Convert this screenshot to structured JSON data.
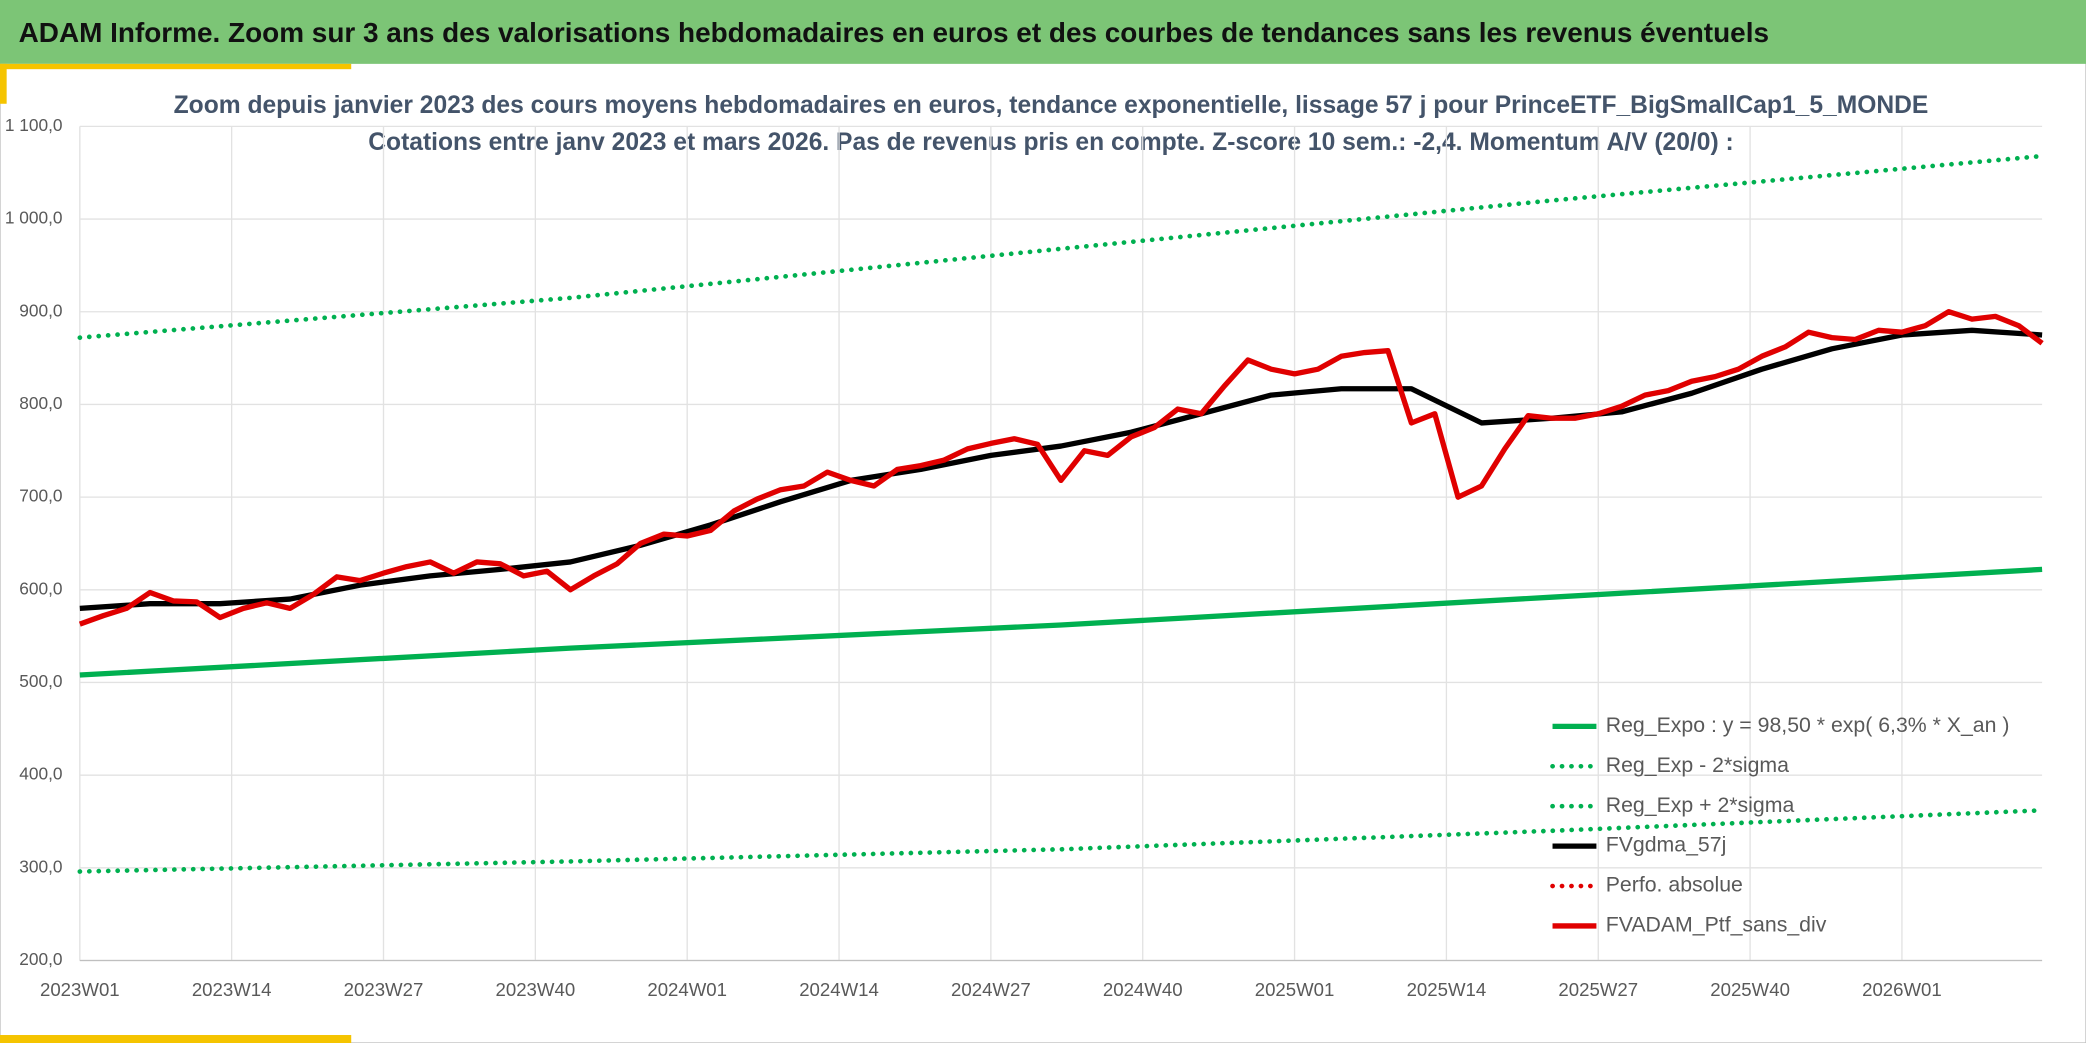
{
  "header": {
    "title": "ADAM Informe. Zoom sur 3 ans des valorisations hebdomadaires en euros et des courbes de tendances sans les revenus éventuels"
  },
  "chart_data": {
    "type": "line",
    "title": "Zoom depuis janvier 2023 des cours moyens hebdomadaires en euros, tendance exponentielle, lissage 57 j pour PrinceETF_BigSmallCap1_5_MONDE",
    "subtitle": "Cotations entre janv 2023 et mars 2026. Pas de revenus pris en compte. Z-score 10 sem.: -2,4. Momentum A/V (20/0) :",
    "xlim": [
      0,
      168
    ],
    "xticks": [
      {
        "value": 0,
        "label": "2023W01"
      },
      {
        "value": 13,
        "label": "2023W14"
      },
      {
        "value": 26,
        "label": "2023W27"
      },
      {
        "value": 39,
        "label": "2023W40"
      },
      {
        "value": 52,
        "label": "2024W01"
      },
      {
        "value": 65,
        "label": "2024W14"
      },
      {
        "value": 78,
        "label": "2024W27"
      },
      {
        "value": 91,
        "label": "2024W40"
      },
      {
        "value": 104,
        "label": "2025W01"
      },
      {
        "value": 117,
        "label": "2025W14"
      },
      {
        "value": 130,
        "label": "2025W27"
      },
      {
        "value": 143,
        "label": "2025W40"
      },
      {
        "value": 156,
        "label": "2026W01"
      }
    ],
    "ylim": [
      200,
      1100
    ],
    "yticks": [
      {
        "value": 200,
        "label": "200,0"
      },
      {
        "value": 300,
        "label": "300,0"
      },
      {
        "value": 400,
        "label": "400,0"
      },
      {
        "value": 500,
        "label": "500,0"
      },
      {
        "value": 600,
        "label": "600,0"
      },
      {
        "value": 700,
        "label": "700,0"
      },
      {
        "value": 800,
        "label": "800,0"
      },
      {
        "value": 900,
        "label": "900,0"
      },
      {
        "value": 1000,
        "label": "1 000,0"
      },
      {
        "value": 1100,
        "label": "1 100,0"
      }
    ],
    "grid": true,
    "legend": "bottom-right",
    "series": [
      {
        "name": "Reg_Expo : y = 98,50 * exp( 6,3% *  X_an )",
        "color": "#00b050",
        "style": "solid",
        "x": [
          0,
          42,
          84,
          126,
          168
        ],
        "values": [
          508,
          537,
          562,
          592,
          622
        ]
      },
      {
        "name": "Reg_Exp - 2*sigma",
        "color": "#00b050",
        "style": "dot",
        "x": [
          0,
          42,
          84,
          126,
          168
        ],
        "values": [
          296,
          307,
          320,
          340,
          362
        ]
      },
      {
        "name": "Reg_Exp + 2*sigma",
        "color": "#00b050",
        "style": "dot",
        "x": [
          0,
          42,
          84,
          126,
          168
        ],
        "values": [
          872,
          915,
          968,
          1020,
          1068
        ]
      },
      {
        "name": "FVgdma_57j",
        "color": "#000000",
        "style": "solid",
        "x": [
          0,
          6,
          12,
          18,
          24,
          30,
          36,
          42,
          48,
          54,
          60,
          66,
          72,
          78,
          84,
          90,
          96,
          102,
          108,
          114,
          120,
          126,
          132,
          138,
          144,
          150,
          156,
          162,
          168
        ],
        "values": [
          580,
          585,
          585,
          590,
          605,
          615,
          622,
          630,
          648,
          670,
          695,
          718,
          730,
          745,
          755,
          770,
          790,
          810,
          817,
          817,
          780,
          785,
          792,
          812,
          838,
          860,
          875,
          880,
          875
        ]
      },
      {
        "name": "Perfo. absolue",
        "color": "#e00000",
        "style": "dot",
        "x": [],
        "values": []
      },
      {
        "name": "FVADAM_Ptf_sans_div",
        "color": "#e00000",
        "style": "solid",
        "x": [
          0,
          2,
          4,
          6,
          8,
          10,
          12,
          14,
          16,
          18,
          20,
          22,
          24,
          26,
          28,
          30,
          32,
          34,
          36,
          38,
          40,
          42,
          44,
          46,
          48,
          50,
          52,
          54,
          56,
          58,
          60,
          62,
          64,
          66,
          68,
          70,
          72,
          74,
          76,
          78,
          80,
          82,
          84,
          86,
          88,
          90,
          92,
          94,
          96,
          98,
          100,
          102,
          104,
          106,
          108,
          110,
          112,
          114,
          116,
          118,
          120,
          122,
          124,
          126,
          128,
          130,
          132,
          134,
          136,
          138,
          140,
          142,
          144,
          146,
          148,
          150,
          152,
          154,
          156,
          158,
          160,
          162,
          164,
          166,
          168
        ],
        "values": [
          563,
          572,
          580,
          597,
          588,
          587,
          570,
          580,
          586,
          580,
          595,
          614,
          610,
          618,
          625,
          630,
          618,
          630,
          628,
          615,
          620,
          600,
          615,
          628,
          650,
          660,
          658,
          664,
          685,
          698,
          708,
          712,
          727,
          718,
          712,
          730,
          734,
          740,
          752,
          758,
          763,
          757,
          718,
          750,
          745,
          765,
          775,
          795,
          790,
          820,
          848,
          838,
          833,
          838,
          852,
          856,
          858,
          780,
          790,
          700,
          712,
          752,
          788,
          785,
          785,
          790,
          798,
          810,
          815,
          825,
          830,
          838,
          852,
          862,
          878,
          872,
          870,
          880,
          878,
          885,
          900,
          892,
          895,
          885,
          866
        ]
      }
    ]
  }
}
